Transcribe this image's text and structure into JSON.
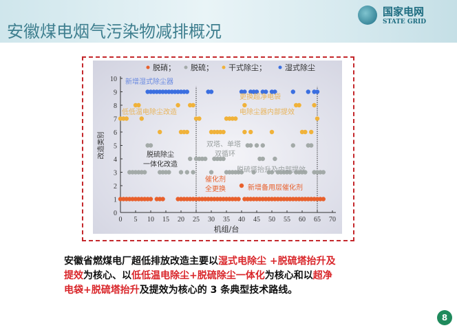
{
  "header": {
    "title": "安徽煤电烟气污染物减排概况",
    "logo_cn": "国家电网",
    "logo_en": "STATE GRID"
  },
  "chart_data": {
    "type": "scatter",
    "xlabel": "机组/台",
    "ylabel": "改造类别",
    "xlim": [
      0,
      70
    ],
    "ylim": [
      0,
      10
    ],
    "xticks": [
      0,
      5,
      10,
      15,
      20,
      25,
      30,
      35,
      40,
      45,
      50,
      55,
      60,
      65,
      70
    ],
    "yticks": [
      0,
      1,
      2,
      3,
      4,
      5,
      6,
      7,
      8,
      9,
      10
    ],
    "legend_position": "top",
    "vlines": [
      25,
      65
    ],
    "series": [
      {
        "name": "脱硝；",
        "color": "#e8602c",
        "points": [
          [
            0,
            1
          ],
          [
            1,
            1
          ],
          [
            2,
            1
          ],
          [
            3,
            1
          ],
          [
            4,
            1
          ],
          [
            5,
            1
          ],
          [
            6,
            1
          ],
          [
            7,
            1
          ],
          [
            8,
            1
          ],
          [
            9,
            1
          ],
          [
            10,
            1
          ],
          [
            12,
            1
          ],
          [
            13,
            1
          ],
          [
            14,
            1
          ],
          [
            19,
            1
          ],
          [
            20,
            1
          ],
          [
            21,
            1
          ],
          [
            22,
            1
          ],
          [
            23,
            1
          ],
          [
            24,
            1
          ],
          [
            25,
            1
          ],
          [
            26,
            1
          ],
          [
            27,
            1
          ],
          [
            28,
            1
          ],
          [
            29,
            1
          ],
          [
            30,
            1
          ],
          [
            31,
            1
          ],
          [
            32,
            1
          ],
          [
            33,
            1
          ],
          [
            34,
            1
          ],
          [
            35,
            1
          ],
          [
            36,
            1
          ],
          [
            37,
            1
          ],
          [
            38,
            1
          ],
          [
            39,
            1
          ],
          [
            40,
            2
          ],
          [
            41,
            1
          ],
          [
            42,
            1
          ],
          [
            43,
            1
          ],
          [
            44,
            1
          ],
          [
            45,
            1
          ],
          [
            46,
            1
          ],
          [
            47,
            1
          ],
          [
            48,
            1
          ],
          [
            49,
            1
          ],
          [
            50,
            1
          ],
          [
            51,
            1
          ],
          [
            52,
            1
          ],
          [
            53,
            1
          ],
          [
            54,
            1
          ],
          [
            55,
            1
          ],
          [
            56,
            1
          ],
          [
            57,
            1
          ],
          [
            58,
            1
          ],
          [
            59,
            1
          ],
          [
            60,
            1
          ],
          [
            61,
            1
          ],
          [
            62,
            1
          ],
          [
            63,
            1
          ],
          [
            64,
            1
          ],
          [
            65,
            1
          ],
          [
            66,
            1
          ],
          [
            67,
            1
          ]
        ]
      },
      {
        "name": "脱硫；",
        "color": "#a3aaa8",
        "points": [
          [
            3,
            3
          ],
          [
            4,
            3
          ],
          [
            5,
            3
          ],
          [
            6,
            3
          ],
          [
            7,
            3
          ],
          [
            8,
            3
          ],
          [
            9,
            5
          ],
          [
            10,
            5
          ],
          [
            13,
            3
          ],
          [
            14,
            3
          ],
          [
            15,
            3
          ],
          [
            16,
            3
          ],
          [
            20,
            3
          ],
          [
            22,
            3
          ],
          [
            23,
            4
          ],
          [
            24,
            3
          ],
          [
            25,
            4
          ],
          [
            26,
            4
          ],
          [
            27,
            4
          ],
          [
            28,
            4
          ],
          [
            30,
            3
          ],
          [
            31,
            4
          ],
          [
            32,
            4
          ],
          [
            33,
            4
          ],
          [
            34,
            4
          ],
          [
            35,
            3
          ],
          [
            36,
            3
          ],
          [
            37,
            3
          ],
          [
            38,
            3
          ],
          [
            39,
            3
          ],
          [
            40,
            3
          ],
          [
            42,
            5
          ],
          [
            43,
            5
          ],
          [
            44,
            3
          ],
          [
            45,
            5
          ],
          [
            46,
            4
          ],
          [
            47,
            5
          ],
          [
            47,
            4
          ],
          [
            49,
            3
          ],
          [
            50,
            3
          ],
          [
            51,
            4
          ],
          [
            52,
            3
          ],
          [
            53,
            3
          ],
          [
            54,
            3
          ],
          [
            55,
            3
          ],
          [
            56,
            3
          ],
          [
            57,
            5
          ],
          [
            58,
            3
          ],
          [
            59,
            3
          ],
          [
            60,
            3
          ],
          [
            61,
            3
          ],
          [
            62,
            5
          ],
          [
            63,
            5
          ],
          [
            64,
            3
          ],
          [
            65,
            3
          ],
          [
            66,
            3
          ],
          [
            67,
            3
          ]
        ]
      },
      {
        "name": "干式除尘；",
        "color": "#f0b23a",
        "points": [
          [
            0,
            7
          ],
          [
            1,
            7
          ],
          [
            2,
            7
          ],
          [
            5,
            8
          ],
          [
            6,
            8
          ],
          [
            7,
            7
          ],
          [
            13,
            6
          ],
          [
            19,
            8
          ],
          [
            20,
            6
          ],
          [
            21,
            6
          ],
          [
            22,
            6
          ],
          [
            23,
            8
          ],
          [
            24,
            8
          ],
          [
            25,
            7
          ],
          [
            26,
            7
          ],
          [
            30,
            6
          ],
          [
            31,
            6
          ],
          [
            32,
            6
          ],
          [
            33,
            6
          ],
          [
            34,
            6
          ],
          [
            35,
            7
          ],
          [
            36,
            7
          ],
          [
            37,
            7
          ],
          [
            38,
            7
          ],
          [
            41,
            8
          ],
          [
            41,
            6
          ],
          [
            43,
            6
          ],
          [
            50,
            6
          ],
          [
            58,
            8
          ],
          [
            59,
            8
          ],
          [
            60,
            6
          ],
          [
            61,
            6
          ],
          [
            63,
            6
          ],
          [
            64,
            8
          ],
          [
            65,
            7
          ]
        ]
      },
      {
        "name": "湿式除尘",
        "color": "#3b6fe0",
        "points": [
          [
            9,
            9
          ],
          [
            10,
            9
          ],
          [
            11,
            9
          ],
          [
            12,
            9
          ],
          [
            13,
            9
          ],
          [
            14,
            9
          ],
          [
            15,
            9
          ],
          [
            16,
            9
          ],
          [
            17,
            9
          ],
          [
            18,
            9
          ],
          [
            19,
            9
          ],
          [
            20,
            9
          ],
          [
            21,
            9
          ],
          [
            22,
            9
          ],
          [
            29,
            9
          ],
          [
            30,
            9
          ],
          [
            40,
            9
          ],
          [
            41,
            9
          ],
          [
            43,
            9
          ],
          [
            44,
            9
          ],
          [
            45,
            9
          ],
          [
            47,
            9
          ],
          [
            48,
            9
          ],
          [
            50,
            9
          ],
          [
            51,
            9
          ],
          [
            57,
            9
          ],
          [
            62,
            9
          ],
          [
            64,
            9
          ],
          [
            65,
            9
          ]
        ]
      }
    ],
    "annotations": [
      {
        "text": "新增湿式除尘器",
        "color": "#6a8ae0"
      },
      {
        "text": "低低温电除尘改造",
        "color": "#e8b45a"
      },
      {
        "text": "更换超净电袋",
        "color": "#e8b45a"
      },
      {
        "text": "电除尘器内部提效",
        "color": "#e8b45a"
      },
      {
        "text": "双塔、单塔",
        "color": "#9aa0a0"
      },
      {
        "text": "双循环",
        "color": "#9aa0a0"
      },
      {
        "text": "脱硫除尘",
        "color": "#333333"
      },
      {
        "text": "一体化改造",
        "color": "#333333"
      },
      {
        "text": "脱硫塔抬升及内部提效",
        "color": "#9aa0a0"
      },
      {
        "text": "催化剂",
        "color": "#e8602c"
      },
      {
        "text": "全更换",
        "color": "#e8602c"
      },
      {
        "text": "新增备用层催化剂",
        "color": "#e8602c"
      }
    ]
  },
  "caption": {
    "line1": [
      {
        "t": "安徽省燃煤电厂超低排放改造主要以",
        "red": false
      },
      {
        "t": "湿式电除尘 +脱硫塔抬升及",
        "red": true
      }
    ],
    "line2": [
      {
        "t": "提效",
        "red": true
      },
      {
        "t": "为核心、以",
        "red": false
      },
      {
        "t": "低低温电除尘+脱硫除尘一体化",
        "red": true
      },
      {
        "t": "为核心和以",
        "red": false
      },
      {
        "t": "超净",
        "red": true
      }
    ],
    "line3": [
      {
        "t": "电袋+脱硫塔抬升",
        "red": true
      },
      {
        "t": "及提效为核心的 3 条典型技术路线。",
        "red": false
      }
    ]
  },
  "page_number": "8"
}
